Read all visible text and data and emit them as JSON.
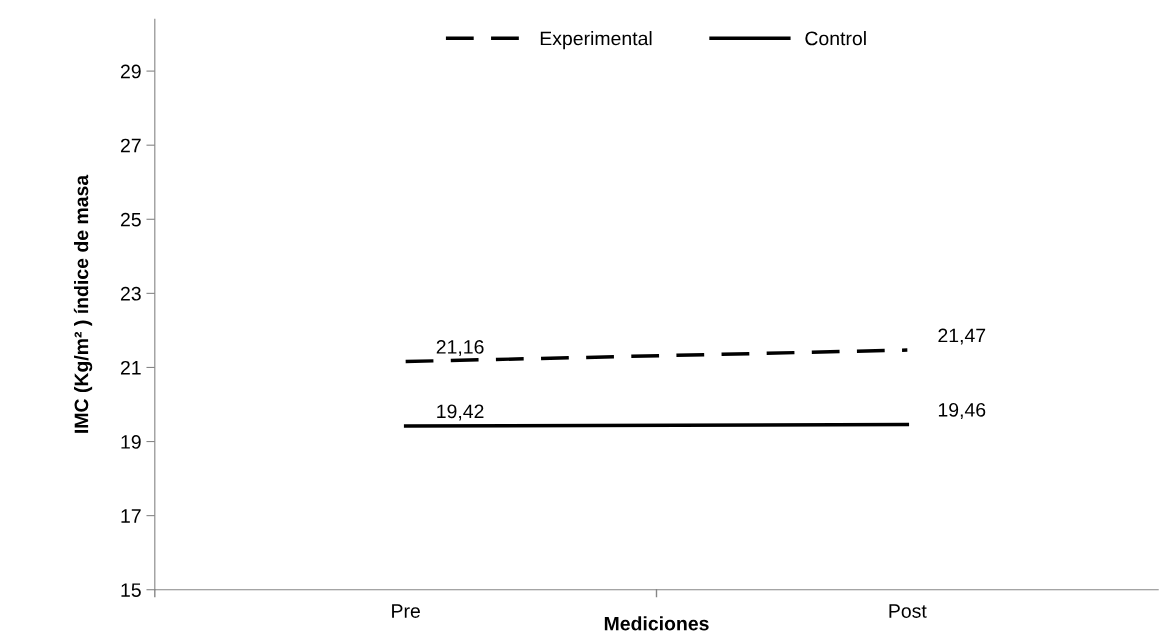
{
  "chart_data": {
    "type": "line",
    "xlabel": "Mediciones",
    "ylabel": "IMC (Kg/m² ) índice de masa",
    "categories": [
      "Pre",
      "Post"
    ],
    "series": [
      {
        "name": "Experimental",
        "color": "#000000",
        "line_style": "dashed",
        "values": [
          21.16,
          21.47
        ],
        "value_labels": [
          "21,16",
          "21,47"
        ]
      },
      {
        "name": "Control",
        "color": "#000000",
        "line_style": "solid",
        "values": [
          19.42,
          19.46
        ],
        "value_labels": [
          "19,42",
          "19,46"
        ]
      }
    ],
    "ylim": [
      15,
      30.4
    ],
    "yticks": [
      15,
      17,
      19,
      21,
      23,
      25,
      27,
      29
    ],
    "grid": false,
    "legend": "top",
    "marker": "none"
  }
}
